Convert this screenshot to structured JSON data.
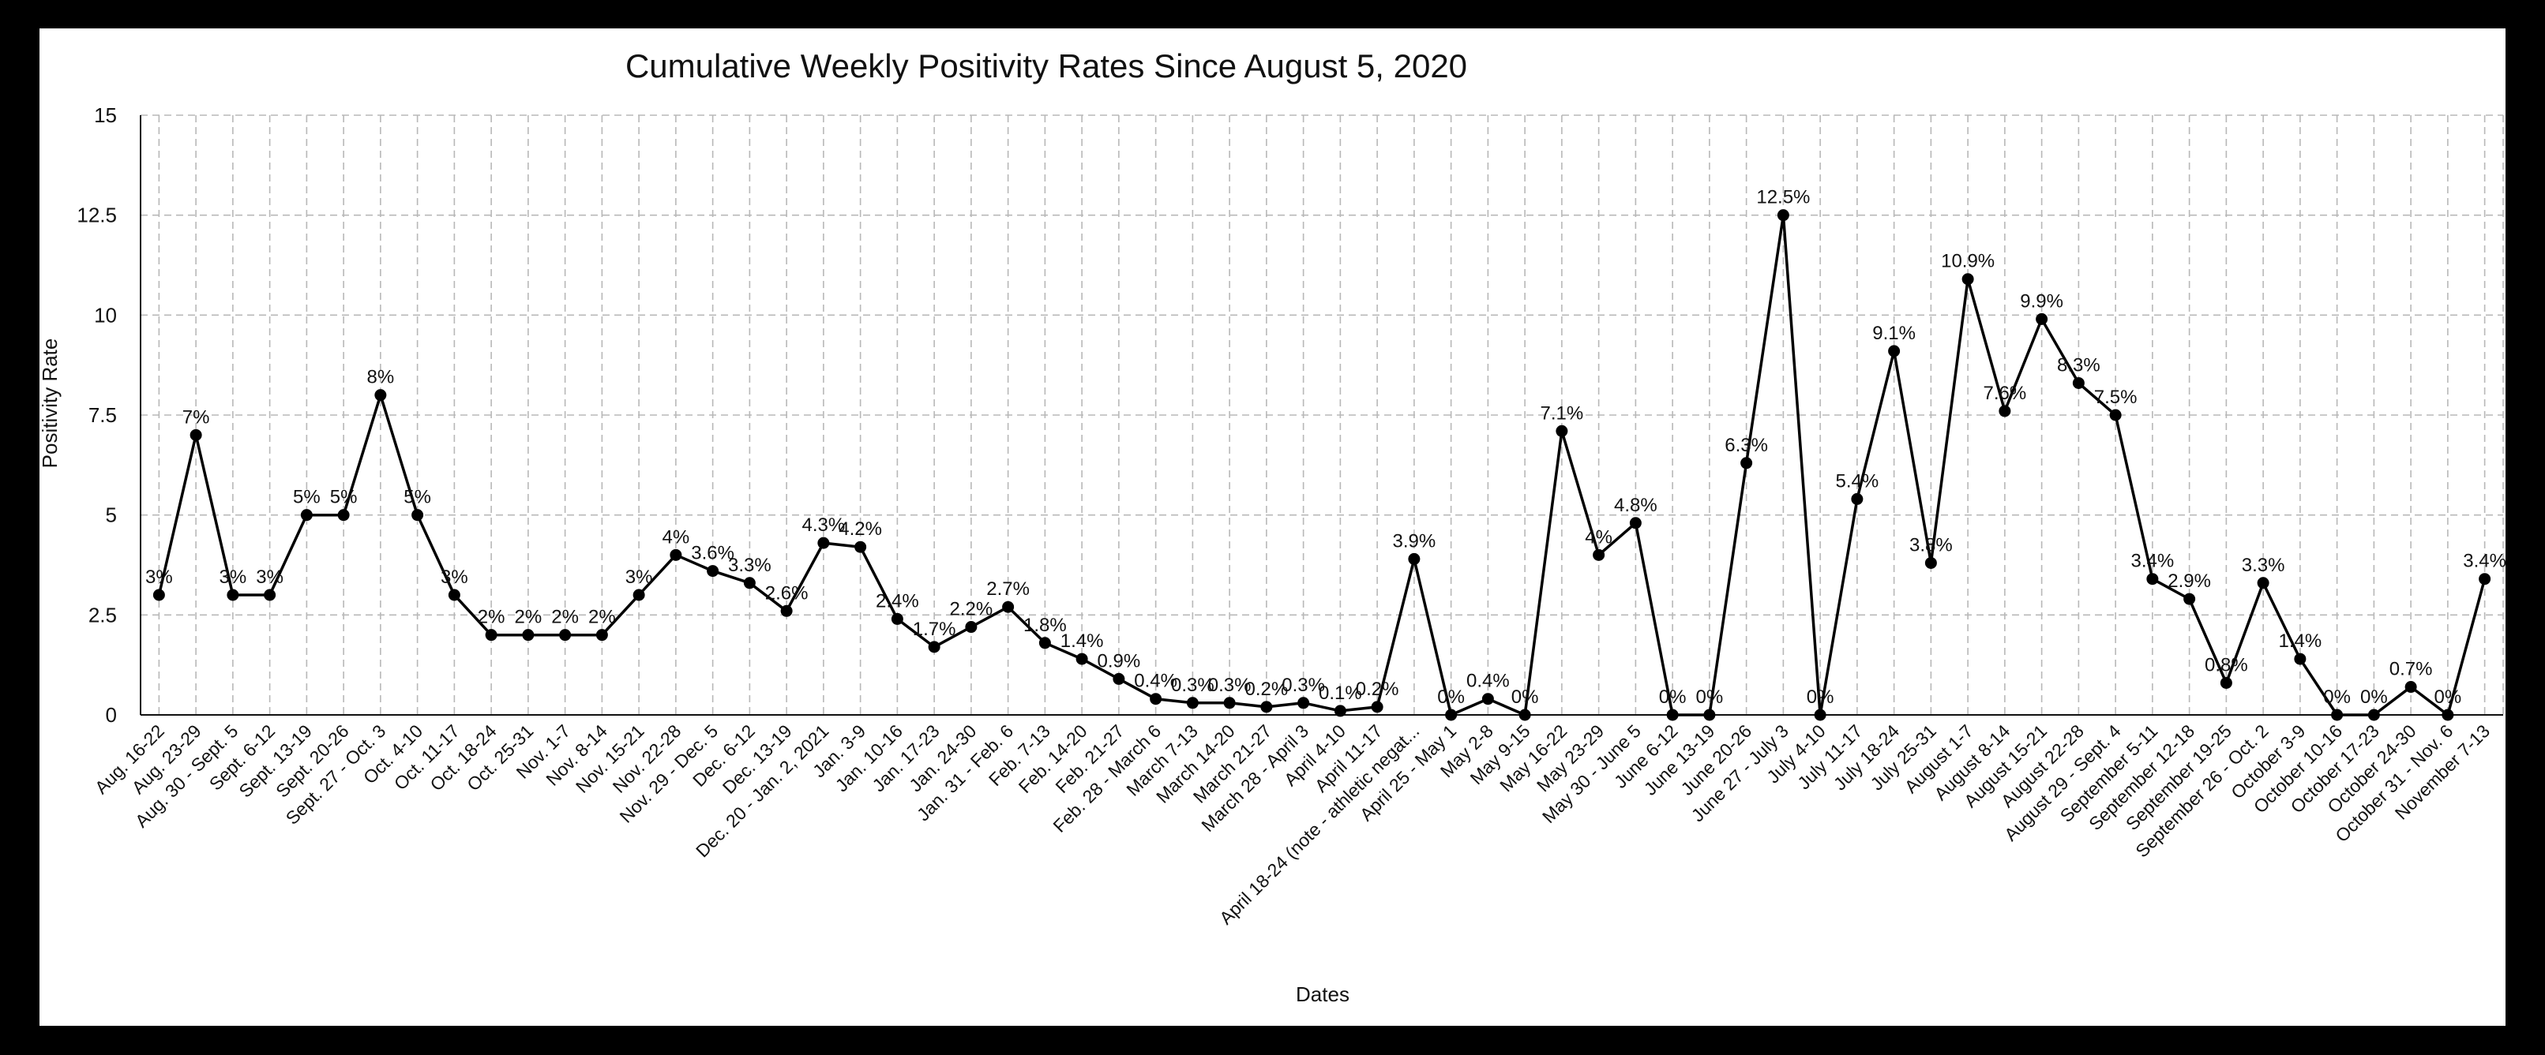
{
  "chart_data": {
    "type": "line",
    "title": "Cumulative Weekly Positivity Rates Since August 5, 2020",
    "xlabel": "Dates",
    "ylabel": "Positivity Rate",
    "ylim": [
      0,
      15
    ],
    "yticks": [
      "0",
      "2.5",
      "5",
      "7.5",
      "10",
      "12.5",
      "15"
    ],
    "grid": true,
    "legend": "none",
    "line_color": "#000000",
    "categories": [
      "Aug. 16-22",
      "Aug. 23-29",
      "Aug. 30 - Sept. 5",
      "Sept. 6-12",
      "Sept. 13-19",
      "Sept. 20-26",
      "Sept. 27 - Oct. 3",
      "Oct. 4-10",
      "Oct. 11-17",
      "Oct. 18-24",
      "Oct. 25-31",
      "Nov. 1-7",
      "Nov. 8-14",
      "Nov. 15-21",
      "Nov. 22-28",
      "Nov. 29 - Dec. 5",
      "Dec. 6-12",
      "Dec. 13-19",
      "Dec. 20 - Jan. 2, 2021",
      "Jan. 3-9",
      "Jan. 10-16",
      "Jan. 17-23",
      "Jan. 24-30",
      "Jan. 31 - Feb. 6",
      "Feb. 7-13",
      "Feb. 14-20",
      "Feb. 21-27",
      "Feb. 28 - March 6",
      "March 7-13",
      "March 14-20",
      "March 21-27",
      "March 28 - April 3",
      "April 4-10",
      "April 11-17",
      "April 18-24 (note - athletic negat...",
      "April 25 - May 1",
      "May 2-8",
      "May 9-15",
      "May 16-22",
      "May 23-29",
      "May 30 - June 5",
      "June 6-12",
      "June 13-19",
      "June 20-26",
      "June 27 - July 3",
      "July 4-10",
      "July 11-17",
      "July 18-24",
      "July 25-31",
      "August 1-7",
      "August 8-14",
      "August 15-21",
      "August 22-28",
      "August 29 - Sept. 4",
      "September 5-11",
      "September 12-18",
      "September 19-25",
      "September 26 - Oct. 2",
      "October 3-9",
      "October 10-16",
      "October 17-23",
      "October 24-30",
      "October 31 - Nov. 6",
      "November 7-13"
    ],
    "values": [
      3,
      7,
      3,
      3,
      5,
      5,
      8,
      5,
      3,
      2,
      2,
      2,
      2,
      3,
      4,
      3.6,
      3.3,
      2.6,
      4.3,
      4.2,
      2.4,
      1.7,
      2.2,
      2.7,
      1.8,
      1.4,
      0.9,
      0.4,
      0.3,
      0.3,
      0.2,
      0.3,
      0.1,
      0.2,
      3.9,
      0,
      0.4,
      0,
      7.1,
      4,
      4.8,
      0,
      0,
      6.3,
      12.5,
      0,
      5.4,
      9.1,
      3.8,
      10.9,
      7.6,
      9.9,
      8.3,
      7.5,
      3.4,
      2.9,
      0.8,
      3.3,
      1.4,
      0,
      0,
      0.7,
      0,
      3.4
    ],
    "data_labels": [
      "3%",
      "7%",
      "3%",
      "3%",
      "5%",
      "5%",
      "8%",
      "5%",
      "3%",
      "2%",
      "2%",
      "2%",
      "2%",
      "3%",
      "4%",
      "3.6%",
      "3.3%",
      "2.6%",
      "4.3%",
      "4.2%",
      "2.4%",
      "1.7%",
      "2.2%",
      "2.7%",
      "1.8%",
      "1.4%",
      "0.9%",
      "0.4%",
      "0.3%",
      "0.3%",
      "0.2%",
      "0.3%",
      "0.1%",
      "0.2%",
      "3.9%",
      "0%",
      "0.4%",
      "0%",
      "7.1%",
      "4%",
      "4.8%",
      "0%",
      "0%",
      "6.3%",
      "12.5%",
      "0%",
      "5.4%",
      "9.1%",
      "3.8%",
      "10.9%",
      "7.6%",
      "9.9%",
      "8.3%",
      "7.5%",
      "3.4%",
      "2.9%",
      "0.8%",
      "3.3%",
      "1.4%",
      "0%",
      "0%",
      "0.7%",
      "0%",
      "3.4%"
    ]
  }
}
